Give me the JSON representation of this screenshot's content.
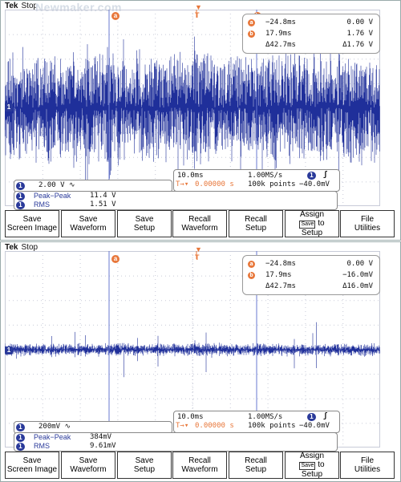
{
  "scopes": [
    {
      "brand": "Tek",
      "state": "Stop",
      "watermark": "Newmaker.com",
      "cursor_a_label": "a",
      "cursor_b_label": "b",
      "trigger_label": "T",
      "readout": {
        "a_time": "−24.8ms",
        "a_value": "0.00 V",
        "b_time": "17.9ms",
        "b_value": "1.76 V",
        "delta_time": "Δ42.7ms",
        "delta_value": "Δ1.76 V"
      },
      "channel_label": "1",
      "scale": "2.00 V",
      "coupling_symbol": "∿",
      "timebase": {
        "time_per_div": "10.0ms",
        "sample_rate": "1.00MS/s",
        "trigger_channel": "1",
        "trigger_slope": "ʃ",
        "trigger_pos": "0.00000 s",
        "record_length": "100k points",
        "trigger_level": "−40.0mV"
      },
      "measurements": [
        {
          "name": "Peak−Peak",
          "value": "11.4 V"
        },
        {
          "name": "RMS",
          "value": "1.51 V"
        }
      ]
    },
    {
      "brand": "Tek",
      "state": "Stop",
      "watermark": "",
      "cursor_a_label": "a",
      "cursor_b_label": "b",
      "trigger_label": "T",
      "readout": {
        "a_time": "−24.8ms",
        "a_value": "0.00 V",
        "b_time": "17.9ms",
        "b_value": "−16.0mV",
        "delta_time": "Δ42.7ms",
        "delta_value": "Δ16.0mV"
      },
      "channel_label": "1",
      "scale": "200mV",
      "coupling_symbol": "∿",
      "timebase": {
        "time_per_div": "10.0ms",
        "sample_rate": "1.00MS/s",
        "trigger_channel": "1",
        "trigger_slope": "ʃ",
        "trigger_pos": "0.00000 s",
        "record_length": "100k points",
        "trigger_level": "−40.0mV"
      },
      "measurements": [
        {
          "name": "Peak−Peak",
          "value": "384mV"
        },
        {
          "name": "RMS",
          "value": "9.61mV"
        }
      ]
    }
  ],
  "menu": {
    "save_screen_image": [
      "Save",
      "Screen Image"
    ],
    "save_waveform": [
      "Save",
      "Waveform"
    ],
    "save_setup": [
      "Save",
      "Setup"
    ],
    "recall_waveform": [
      "Recall",
      "Waveform"
    ],
    "recall_setup": [
      "Recall",
      "Setup"
    ],
    "assign": [
      "Assign",
      "Save",
      "to",
      "Setup"
    ],
    "file_utilities": [
      "File",
      "Utilities"
    ]
  },
  "colors": {
    "trace": "#1f2f9a",
    "cursor": "#e8773a",
    "cursor_line": "#6a7ad0",
    "grid": "#c8cbd8"
  }
}
